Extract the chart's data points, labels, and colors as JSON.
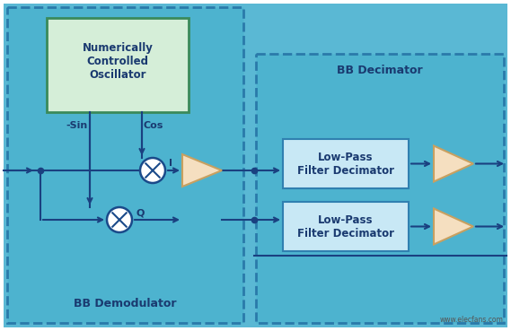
{
  "fig_w": 5.69,
  "fig_h": 3.69,
  "dpi": 100,
  "bg_color": "#ffffff",
  "light_blue_bg": "#5ab8d4",
  "demod_fill": "#4db3cf",
  "decim_fill": "#4db3cf",
  "dash_color": "#2a7aaa",
  "nco_fill": "#d5eed8",
  "nco_edge": "#3a8a5a",
  "lpf_fill": "#c8e8f5",
  "lpf_edge": "#3080b0",
  "tri_fill": "#f5dfc0",
  "tri_edge": "#c8a060",
  "circ_fill": "#ffffff",
  "circ_edge": "#1a4a8a",
  "line_col": "#1a4080",
  "text_col": "#1a3a70",
  "label_bold": true,
  "demod_label": "BB Demodulator",
  "decim_label": "BB Decimator",
  "nco_line1": "Numerically",
  "nco_line2": "Controlled",
  "nco_line3": "Oscillator",
  "lpf_line1": "Low-Pass",
  "lpf_line2": "Filter Decimator",
  "sin_label": "-Sin",
  "cos_label": "Cos",
  "i_label": "I",
  "q_label": "Q",
  "watermark": "www.elecfans.com"
}
